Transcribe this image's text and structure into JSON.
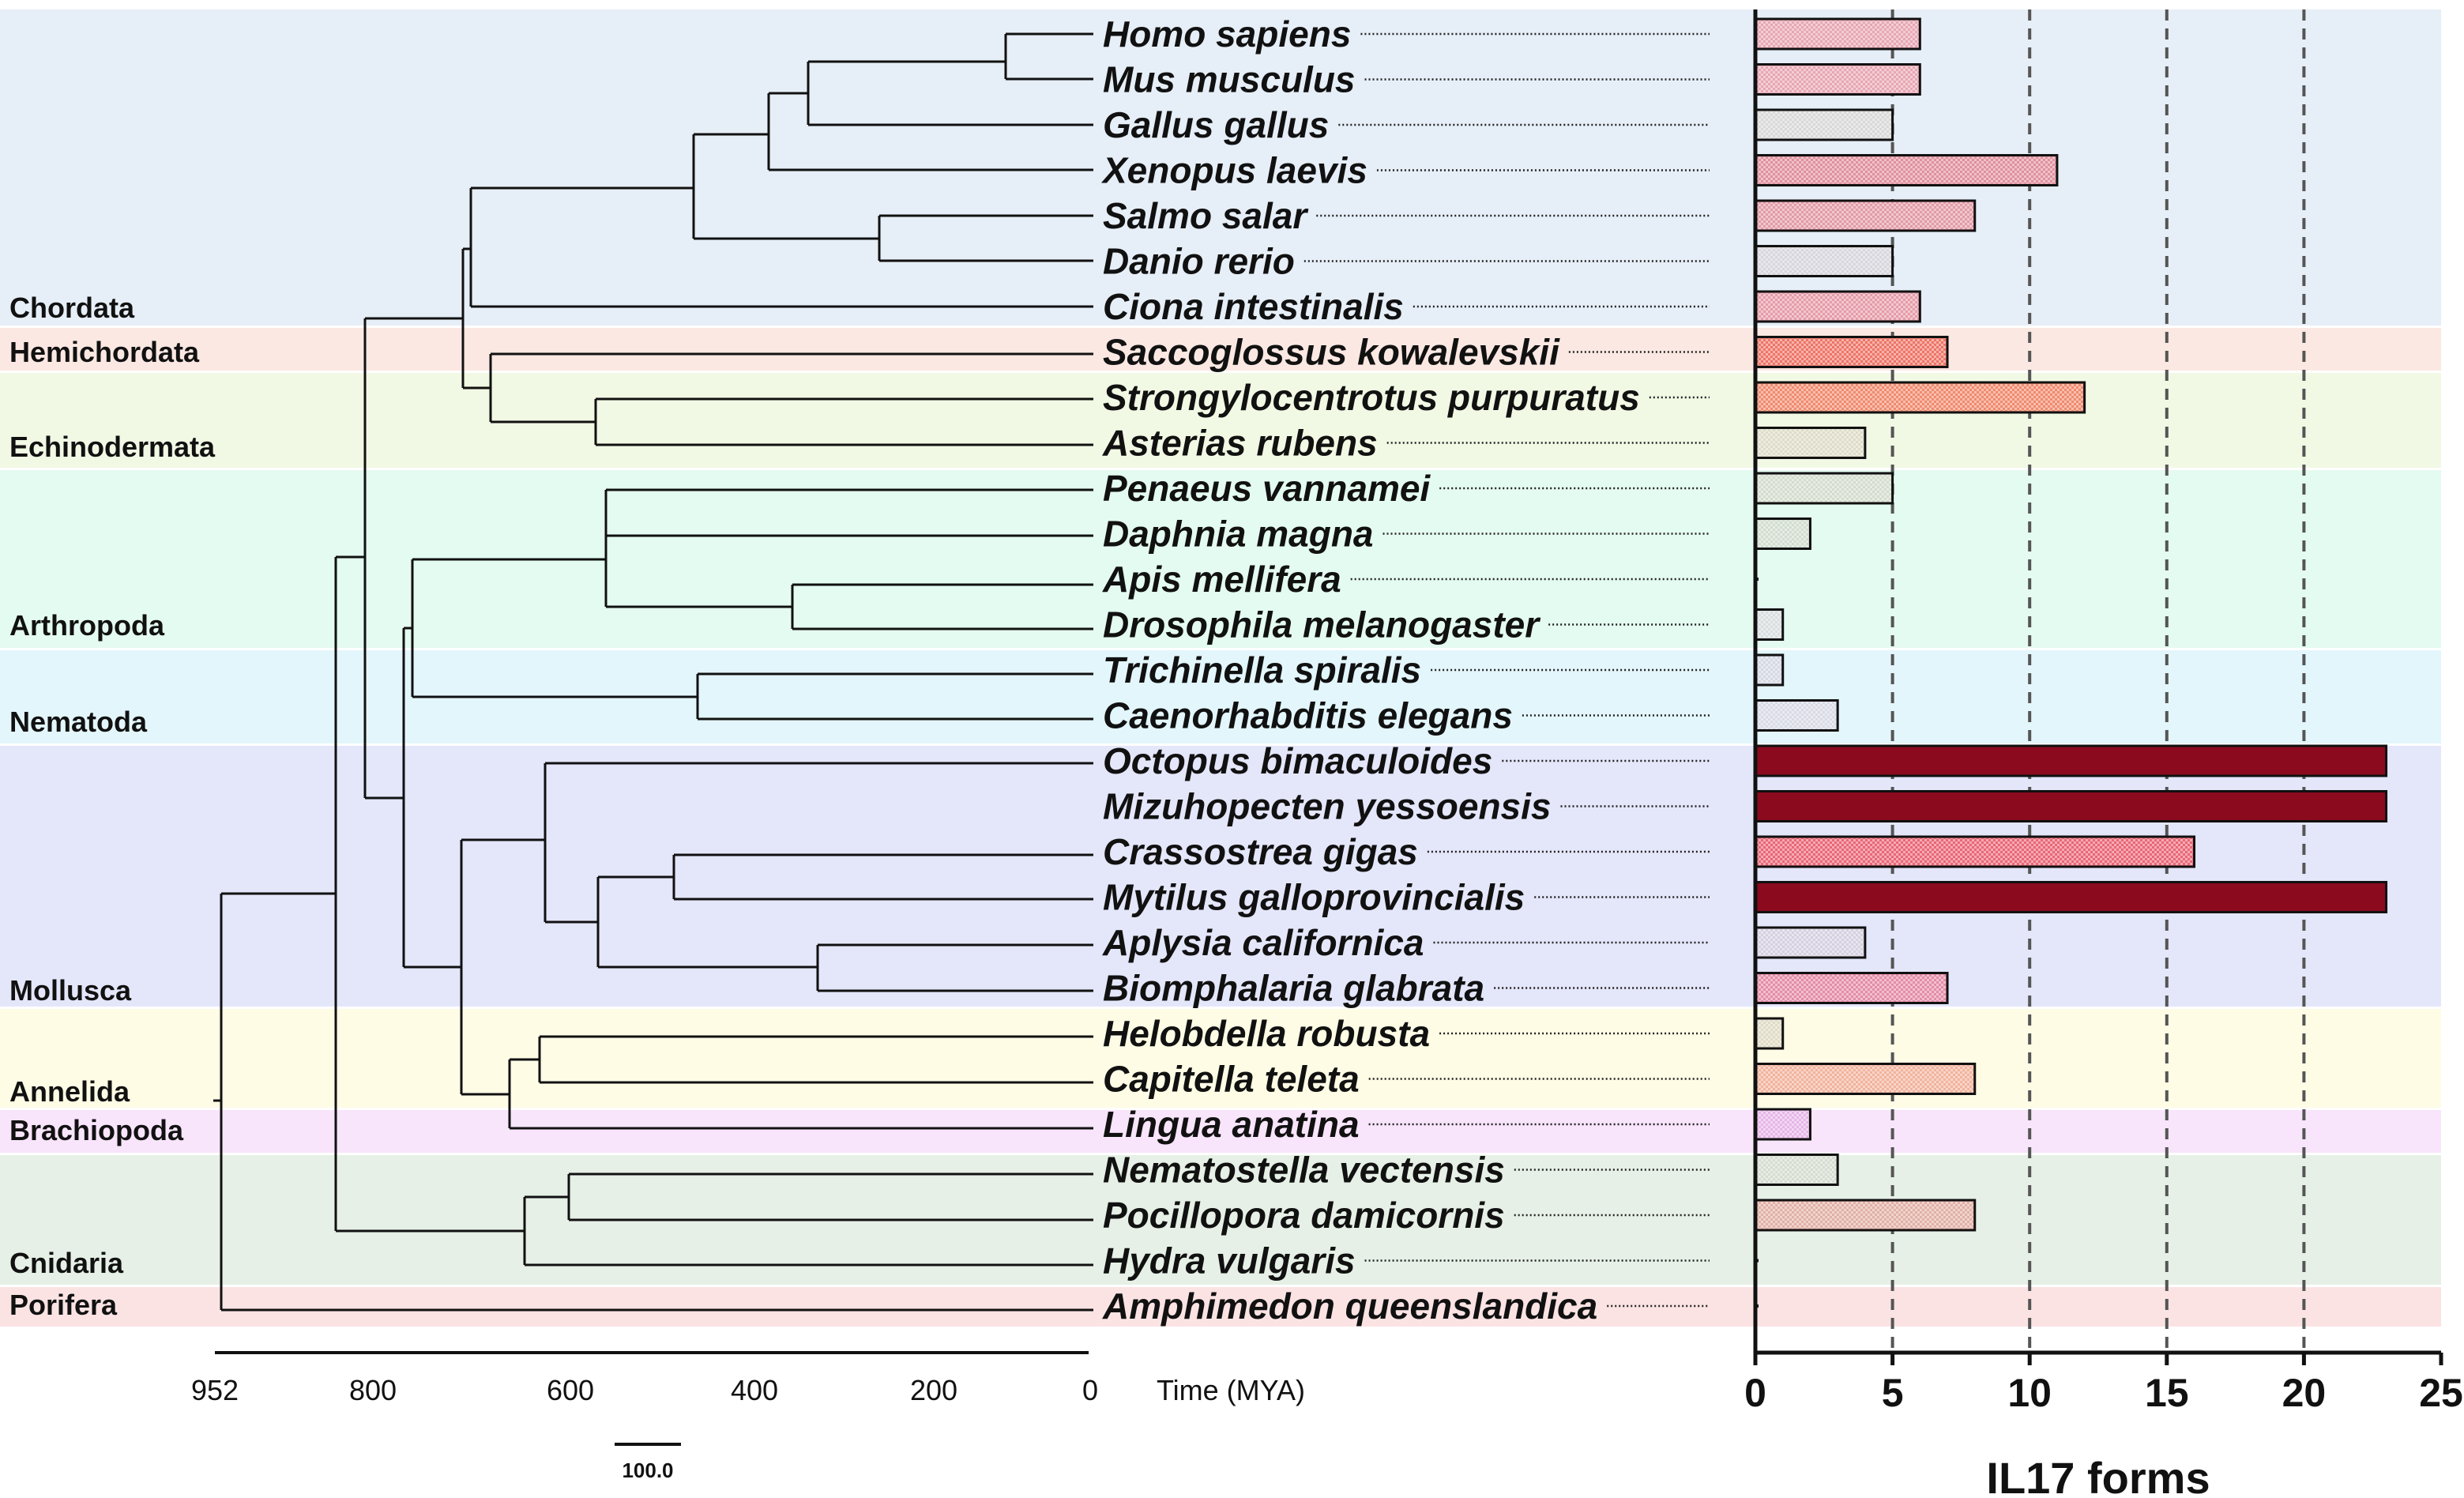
{
  "chart_data": {
    "type": "bar",
    "orientation": "horizontal",
    "title": "",
    "xlabel": "IL17 forms",
    "xlim": [
      0,
      25
    ],
    "x_ticks": [
      0,
      5,
      10,
      15,
      20,
      25
    ],
    "reference_lines": [
      5,
      10,
      15,
      20
    ],
    "categories": [
      "Homo sapiens",
      "Mus musculus",
      "Gallus gallus",
      "Xenopus laevis",
      "Salmo salar",
      "Danio rerio",
      "Ciona intestinalis",
      "Saccoglossus kowalevskii",
      "Strongylocentrotus purpuratus",
      "Asterias rubens",
      "Penaeus vannamei",
      "Daphnia magna",
      "Apis mellifera",
      "Drosophila melanogaster",
      "Trichinella spiralis",
      "Caenorhabditis elegans",
      "Octopus bimaculoides",
      "Mizuhopecten yessoensis",
      "Crassostrea gigas",
      "Mytilus galloprovincialis",
      "Aplysia californica",
      "Biomphalaria glabrata",
      "Helobdella robusta",
      "Capitella teleta",
      "Lingua anatina",
      "Nematostella vectensis",
      "Pocillopora damicornis",
      "Hydra vulgaris",
      "Amphimedon queenslandica"
    ],
    "values": [
      6,
      6,
      5,
      11,
      8,
      5,
      6,
      7,
      12,
      4,
      5,
      2,
      0,
      1,
      1,
      3,
      23,
      23,
      16,
      23,
      4,
      7,
      1,
      8,
      2,
      3,
      8,
      0,
      0
    ],
    "bar_colors": [
      "#e7a6b2",
      "#e7a6b2",
      "#d8d8d8",
      "#e0909e",
      "#e29aa6",
      "#d6d6dc",
      "#e59ba8",
      "#ee7466",
      "#f08a6e",
      "#dedcc8",
      "#d4dccd",
      "#d2ddd0",
      "#d6e0d6",
      "#d8dee0",
      "#d5d8e4",
      "#d8dae6",
      "#8b0a1e",
      "#8b0a1e",
      "#ea6676",
      "#8b0a1e",
      "#d6d0e0",
      "#e48ca8",
      "#e0dbc6",
      "#f1b39c",
      "#e6b6e8",
      "#d6dcd0",
      "#e1b0a6",
      "#dddddd",
      "#dddddd"
    ],
    "tree_time_axis": {
      "label": "Time (MYA)",
      "ticks": [
        "952",
        "800",
        "600",
        "400",
        "200",
        "0"
      ],
      "scale_bar": "100.0"
    },
    "clades": [
      {
        "name": "Chordata",
        "color": "#e6eef7"
      },
      {
        "name": "Hemichordata",
        "color": "#fbe8e2"
      },
      {
        "name": "Echinodermata",
        "color": "#f1f8e4"
      },
      {
        "name": "Arthropoda",
        "color": "#e4fbf1"
      },
      {
        "name": "Nematoda",
        "color": "#e3f6fb"
      },
      {
        "name": "Mollusca",
        "color": "#e4e6fa"
      },
      {
        "name": "Annelida",
        "color": "#fefce5"
      },
      {
        "name": "Brachiopoda",
        "color": "#f8e4fb"
      },
      {
        "name": "Cnidaria",
        "color": "#e6f0e6"
      },
      {
        "name": "Porifera",
        "color": "#fbe3e3"
      }
    ]
  }
}
